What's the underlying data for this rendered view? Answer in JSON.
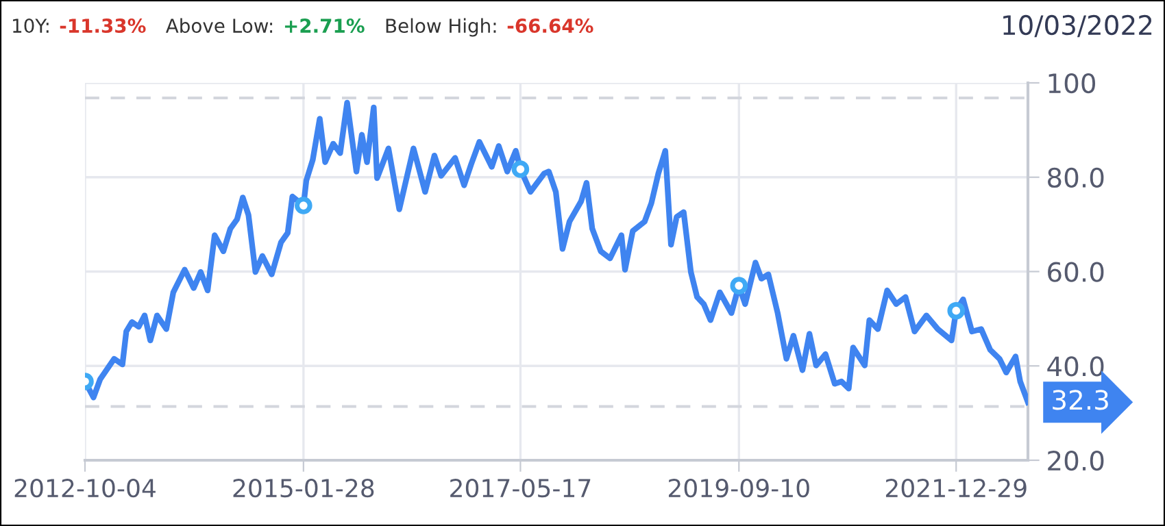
{
  "chart_data": {
    "type": "line",
    "series": [
      {
        "color": "#3f84f0",
        "x": [
          "2012-10-04",
          "2012-11-06",
          "2012-12-02",
          "2013-01-25",
          "2013-02-26",
          "2013-03-13",
          "2013-04-04",
          "2013-04-30",
          "2013-05-23",
          "2013-06-14",
          "2013-07-10",
          "2013-08-15",
          "2013-09-11",
          "2013-10-25",
          "2013-11-29",
          "2013-12-26",
          "2014-01-22",
          "2014-02-18",
          "2014-03-24",
          "2014-04-20",
          "2014-05-16",
          "2014-06-07",
          "2014-06-29",
          "2014-07-26",
          "2014-08-22",
          "2014-09-27",
          "2014-11-02",
          "2014-11-28",
          "2014-12-16",
          "2015-01-28",
          "2015-02-08",
          "2015-03-05",
          "2015-04-01",
          "2015-04-22",
          "2015-05-23",
          "2015-06-19",
          "2015-07-16",
          "2015-08-21",
          "2015-09-11",
          "2015-10-01",
          "2015-10-27",
          "2015-11-09",
          "2015-12-23",
          "2016-02-03",
          "2016-03-29",
          "2016-05-13",
          "2016-06-18",
          "2016-07-14",
          "2016-09-06",
          "2016-10-11",
          "2016-11-07",
          "2016-12-09",
          "2017-01-26",
          "2017-02-22",
          "2017-03-27",
          "2017-04-29",
          "2017-05-17",
          "2017-06-25",
          "2017-08-17",
          "2017-09-04",
          "2017-10-01",
          "2017-10-27",
          "2017-11-23",
          "2018-01-07",
          "2018-01-28",
          "2018-02-19",
          "2018-03-24",
          "2018-04-29",
          "2018-06-12",
          "2018-06-26",
          "2018-07-26",
          "2018-09-10",
          "2018-10-06",
          "2018-11-02",
          "2018-11-29",
          "2018-12-21",
          "2019-01-12",
          "2019-02-08",
          "2019-03-08",
          "2019-04-01",
          "2019-04-27",
          "2019-05-23",
          "2019-06-28",
          "2019-08-12",
          "2019-09-10",
          "2019-10-04",
          "2019-11-13",
          "2019-12-06",
          "2020-01-02",
          "2020-02-07",
          "2020-03-12",
          "2020-04-08",
          "2020-05-13",
          "2020-06-09",
          "2020-07-05",
          "2020-08-10",
          "2020-09-15",
          "2020-10-11",
          "2020-11-08",
          "2020-11-25",
          "2021-01-09",
          "2021-01-27",
          "2021-03-01",
          "2021-04-06",
          "2021-05-11",
          "2021-06-16",
          "2021-07-21",
          "2021-09-05",
          "2021-10-19",
          "2021-12-11",
          "2021-12-29",
          "2022-01-25",
          "2022-02-28",
          "2022-04-05",
          "2022-05-10",
          "2022-06-15",
          "2022-07-11",
          "2022-08-16",
          "2022-09-03",
          "2022-10-03"
        ],
        "values": [
          36.7,
          33.3,
          37.2,
          41.5,
          40.3,
          47.3,
          49.3,
          48.3,
          50.7,
          45.4,
          50.7,
          47.8,
          55.6,
          60.4,
          56.5,
          59.9,
          56.0,
          67.7,
          64.3,
          69.1,
          71.1,
          75.7,
          72.0,
          59.9,
          63.3,
          59.4,
          66.2,
          68.2,
          75.9,
          74.0,
          79.3,
          83.7,
          92.4,
          83.2,
          87.1,
          85.1,
          95.8,
          81.2,
          89.0,
          83.2,
          94.8,
          79.8,
          86.1,
          73.2,
          86.1,
          76.9,
          84.6,
          80.3,
          84.1,
          78.3,
          82.7,
          87.5,
          82.2,
          86.6,
          81.2,
          85.6,
          81.7,
          76.9,
          80.8,
          81.2,
          76.9,
          64.8,
          70.6,
          74.9,
          78.8,
          69.1,
          64.3,
          62.8,
          67.7,
          60.4,
          68.6,
          70.6,
          74.5,
          80.8,
          85.6,
          65.7,
          71.6,
          72.6,
          59.9,
          54.6,
          53.1,
          49.7,
          55.6,
          51.2,
          57.0,
          53.1,
          61.9,
          58.5,
          59.4,
          51.2,
          41.5,
          46.4,
          39.1,
          46.8,
          40.1,
          42.5,
          36.2,
          36.7,
          35.2,
          43.9,
          40.1,
          49.7,
          47.8,
          56.0,
          53.1,
          54.6,
          47.3,
          50.7,
          47.8,
          45.4,
          51.7,
          54.1,
          47.3,
          47.8,
          43.4,
          41.5,
          38.6,
          42.0,
          36.7,
          32.3
        ]
      },
      {
        "type": "scatter",
        "color": "#3fa9f5",
        "marker": "circle",
        "x": [
          "2012-10-04",
          "2015-01-28",
          "2017-05-17",
          "2019-09-10",
          "2021-12-29"
        ],
        "values": [
          36.7,
          74.0,
          81.7,
          57.0,
          51.7
        ]
      }
    ],
    "xlim": [
      "2012-10-04",
      "2022-10-03"
    ],
    "xticks": [
      "2012-10-04",
      "2015-01-28",
      "2017-05-17",
      "2019-09-10",
      "2021-12-29"
    ],
    "ylim": [
      20,
      100
    ],
    "yticks": [
      {
        "value": 20,
        "label": "20.0"
      },
      {
        "value": 40,
        "label": "40.0"
      },
      {
        "value": 60,
        "label": "60.0"
      },
      {
        "value": 80,
        "label": "80.0"
      },
      100
    ],
    "ref_lines": [
      {
        "axis": "y",
        "value": 96.8,
        "color": "#d3d6dd",
        "line_style": "dashed"
      },
      {
        "axis": "y",
        "value": 31.4,
        "color": "#d3d6dd",
        "line_style": "dashed"
      }
    ],
    "grid": true,
    "line_style": "solid",
    "annotations": [
      "10Y:",
      "-11.33%",
      "Above Low:",
      "+2.71%",
      "Below High:",
      "-66.64%",
      "10/03/2022",
      {
        "text": "32.3",
        "x": "2022-10-03",
        "y": 32.3
      }
    ]
  }
}
